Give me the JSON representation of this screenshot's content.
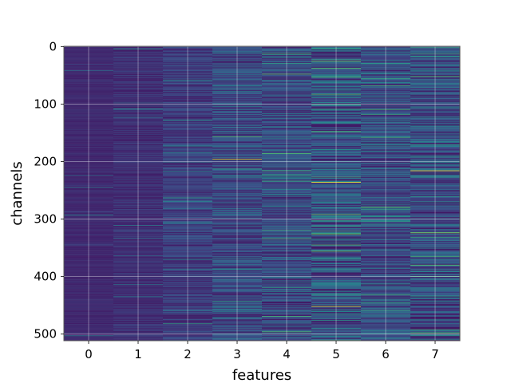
{
  "chart_data": {
    "type": "heatmap",
    "title": "",
    "xlabel": "features",
    "ylabel": "channels",
    "x_categories": [
      "0",
      "1",
      "2",
      "3",
      "4",
      "5",
      "6",
      "7"
    ],
    "y_ticks": [
      0,
      100,
      200,
      300,
      400,
      500
    ],
    "y_range": [
      0,
      511
    ],
    "y_inverted": true,
    "grid": true,
    "colormap": "viridis",
    "value_range": [
      0,
      1
    ],
    "description_levels": {
      "base_level_per_feature": [
        0.12,
        0.14,
        0.18,
        0.22,
        0.22,
        0.25,
        0.23,
        0.22
      ],
      "variance_per_feature": [
        0.03,
        0.06,
        0.1,
        0.14,
        0.15,
        0.22,
        0.17,
        0.18
      ]
    },
    "highlights": [
      {
        "feature": 3,
        "channel": 196,
        "value": 0.95
      },
      {
        "feature": 4,
        "channel": 48,
        "value": 0.75
      },
      {
        "feature": 4,
        "channel": 186,
        "value": 0.7
      },
      {
        "feature": 4,
        "channel": 216,
        "value": 0.65
      },
      {
        "feature": 4,
        "channel": 496,
        "value": 0.7
      },
      {
        "feature": 5,
        "channel": 38,
        "value": 0.75
      },
      {
        "feature": 5,
        "channel": 236,
        "value": 1.0
      },
      {
        "feature": 5,
        "channel": 452,
        "value": 0.95
      },
      {
        "feature": 6,
        "channel": 118,
        "value": 0.6
      },
      {
        "feature": 7,
        "channel": 52,
        "value": 0.7
      },
      {
        "feature": 7,
        "channel": 216,
        "value": 1.0
      },
      {
        "feature": 7,
        "channel": 324,
        "value": 0.85
      }
    ]
  }
}
